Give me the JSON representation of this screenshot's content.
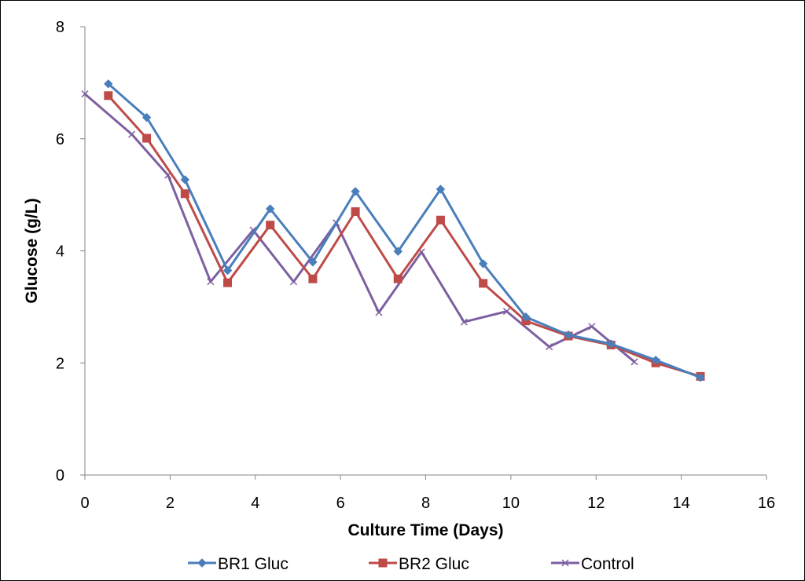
{
  "chart_data": {
    "type": "line",
    "title": "",
    "xlabel": "Culture Time (Days)",
    "ylabel": "Glucose (g/L)",
    "xlim": [
      0,
      16
    ],
    "ylim": [
      0,
      8
    ],
    "xticks": [
      "0",
      "2",
      "4",
      "6",
      "8",
      "10",
      "12",
      "14",
      "16"
    ],
    "yticks": [
      "0",
      "2",
      "4",
      "6",
      "8"
    ],
    "grid": false,
    "legend_position": "bottom",
    "series": [
      {
        "name": "BR1 Gluc",
        "color": "#4a7ebb",
        "marker": "diamond",
        "x": [
          0.55,
          1.45,
          2.35,
          3.35,
          4.35,
          5.35,
          6.35,
          7.35,
          8.35,
          9.35,
          10.35,
          11.35,
          12.35,
          13.4,
          14.45
        ],
        "y": [
          6.98,
          6.38,
          5.27,
          3.65,
          4.75,
          3.8,
          5.06,
          3.99,
          5.1,
          3.77,
          2.82,
          2.5,
          2.34,
          2.05,
          1.74
        ]
      },
      {
        "name": "BR2 Gluc",
        "color": "#be4b48",
        "marker": "square",
        "x": [
          0.55,
          1.45,
          2.35,
          3.35,
          4.35,
          5.35,
          6.35,
          7.35,
          8.35,
          9.35,
          10.35,
          11.35,
          12.35,
          13.4,
          14.45
        ],
        "y": [
          6.77,
          6.01,
          5.02,
          3.43,
          4.46,
          3.5,
          4.7,
          3.5,
          4.55,
          3.42,
          2.75,
          2.48,
          2.32,
          2.0,
          1.76
        ]
      },
      {
        "name": "Control",
        "color": "#7d5fa0",
        "marker": "x",
        "x": [
          0,
          1.1,
          1.95,
          2.95,
          3.95,
          4.9,
          5.9,
          6.9,
          7.9,
          8.9,
          9.9,
          10.9,
          11.9,
          12.9
        ],
        "y": [
          6.8,
          6.08,
          5.35,
          3.45,
          4.37,
          3.45,
          4.5,
          2.9,
          3.98,
          2.73,
          2.92,
          2.29,
          2.65,
          2.02
        ]
      }
    ]
  }
}
